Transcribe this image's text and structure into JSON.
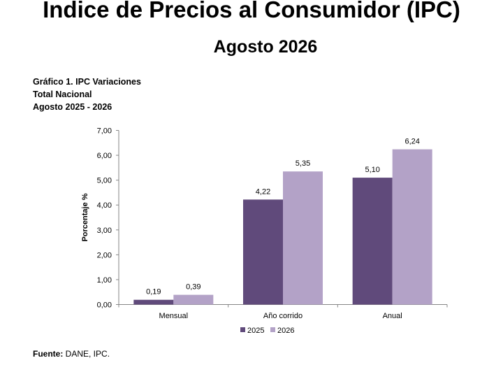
{
  "header": {
    "title": "Indice de Precios al Consumidor (IPC)",
    "subtitle": "Agosto 2026"
  },
  "chart_caption": {
    "line1": "Gráfico 1. IPC Variaciones",
    "line2": "Total Nacional",
    "line3": "Agosto 2025 - 2026"
  },
  "chart_data": {
    "type": "bar",
    "categories": [
      "Mensual",
      "Año corrido",
      "Anual"
    ],
    "series": [
      {
        "name": "2025",
        "values": [
          0.19,
          4.22,
          5.1
        ],
        "labels": [
          "0,19",
          "4,22",
          "5,10"
        ],
        "color": "#604a7b"
      },
      {
        "name": "2026",
        "values": [
          0.39,
          5.35,
          6.24
        ],
        "labels": [
          "0,39",
          "5,35",
          "6,24"
        ],
        "color": "#b3a2c7"
      }
    ],
    "ylabel": "Porcentaje %",
    "ylim": [
      0,
      7
    ],
    "yticks": [
      0,
      1,
      2,
      3,
      4,
      5,
      6,
      7
    ],
    "ytick_labels": [
      "0,00",
      "1,00",
      "2,00",
      "3,00",
      "4,00",
      "5,00",
      "6,00",
      "7,00"
    ],
    "grid": false,
    "legend_position": "bottom"
  },
  "source": {
    "label": "Fuente:",
    "text": " DANE, IPC."
  }
}
